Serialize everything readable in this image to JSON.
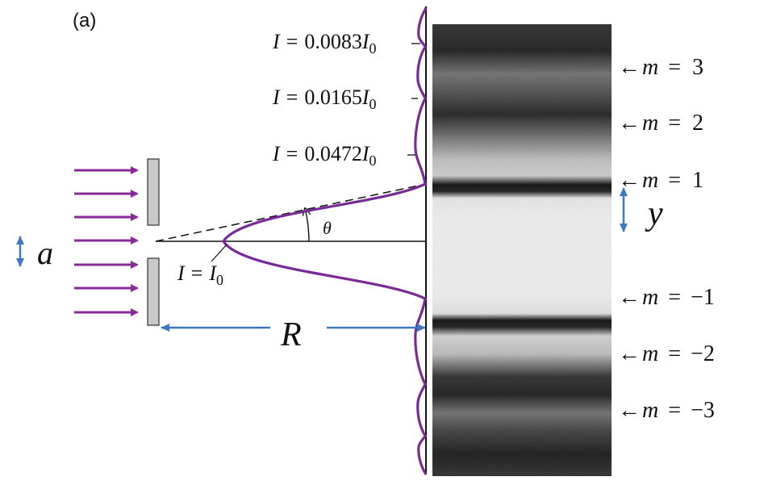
{
  "panel_label": "(a)",
  "intensity_labels": [
    {
      "var": "I",
      "eq": "=",
      "coef": "0.0083",
      "ref": "I",
      "sub": "0"
    },
    {
      "var": "I",
      "eq": "=",
      "coef": "0.0165",
      "ref": "I",
      "sub": "0"
    },
    {
      "var": "I",
      "eq": "=",
      "coef": "0.0472",
      "ref": "I",
      "sub": "0"
    }
  ],
  "center_intensity": {
    "var": "I",
    "eq": "=",
    "ref": "I",
    "sub": "0"
  },
  "angle_symbol": "θ",
  "slit_width_symbol": "a",
  "distance_symbol": "R",
  "fringe_offset_symbol": "y",
  "orders": [
    {
      "arrow": "←",
      "var": "m",
      "eq": "=",
      "value": "3"
    },
    {
      "arrow": "←",
      "var": "m",
      "eq": "=",
      "value": "2"
    },
    {
      "arrow": "←",
      "var": "m",
      "eq": "=",
      "value": "1"
    },
    {
      "arrow": "←",
      "var": "m",
      "eq": "=",
      "value": "−1"
    },
    {
      "arrow": "←",
      "var": "m",
      "eq": "=",
      "value": "−2"
    },
    {
      "arrow": "←",
      "var": "m",
      "eq": "=",
      "value": "−3"
    }
  ],
  "colors": {
    "wave_arrows": "#8a2a9a",
    "intensity_curve": "#7a2a96",
    "dimension_arrows": "#3d79c2",
    "slit": "#c8c8c8",
    "line": "#111111"
  }
}
